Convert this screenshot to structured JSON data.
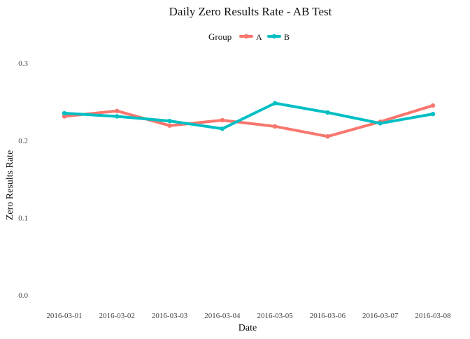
{
  "chart_data": {
    "type": "line",
    "title": "Daily Zero Results Rate - AB Test",
    "xlabel": "Date",
    "ylabel": "Zero Results Rate",
    "categories": [
      "2016-03-01",
      "2016-03-02",
      "2016-03-03",
      "2016-03-04",
      "2016-03-05",
      "2016-03-06",
      "2016-03-07",
      "2016-03-08"
    ],
    "ylim": [
      0,
      0.32
    ],
    "yticks": [
      "0.0",
      "0.1",
      "0.2",
      "0.3"
    ],
    "grid": false,
    "legend": {
      "title": "Group",
      "position": "top"
    },
    "series": [
      {
        "name": "A",
        "color": "#F8766D",
        "values": [
          0.231,
          0.238,
          0.219,
          0.226,
          0.218,
          0.205,
          0.224,
          0.245
        ]
      },
      {
        "name": "B",
        "color": "#00BFC4",
        "values": [
          0.235,
          0.231,
          0.225,
          0.215,
          0.248,
          0.236,
          0.222,
          0.234
        ]
      }
    ]
  }
}
